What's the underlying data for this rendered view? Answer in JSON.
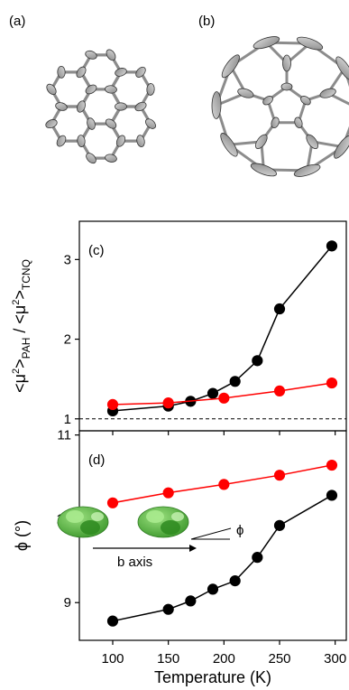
{
  "panels": {
    "a": {
      "label": "(a)"
    },
    "b": {
      "label": "(b)"
    }
  },
  "chart_data": [
    {
      "type": "line",
      "panel_label": "(c)",
      "xlabel": "",
      "ylabel": "<μ²>PAH / <μ²>TCNQ",
      "ylabel_parts": {
        "main1": "<μ",
        "sup1": "2",
        "main2": ">",
        "sub1": "PAH",
        "main3": " / <μ",
        "sup2": "2",
        "main4": ">",
        "sub2": "TCNQ"
      },
      "xlim": [
        70,
        310
      ],
      "ylim": [
        0.85,
        3.48
      ],
      "yticks": [
        1,
        2,
        3
      ],
      "reference_line": {
        "y": 1,
        "style": "dashed"
      },
      "series": [
        {
          "color": "#000000",
          "x": [
            100,
            150,
            170,
            190,
            210,
            230,
            250,
            297
          ],
          "y": [
            1.1,
            1.16,
            1.22,
            1.32,
            1.47,
            1.73,
            2.38,
            3.17
          ]
        },
        {
          "color": "#ff0000",
          "x": [
            100,
            150,
            200,
            250,
            297
          ],
          "y": [
            1.18,
            1.2,
            1.26,
            1.35,
            1.45
          ]
        }
      ]
    },
    {
      "type": "line",
      "panel_label": "(d)",
      "xlabel": "Temperature (K)",
      "ylabel": "ϕ (°)",
      "xlim": [
        70,
        310
      ],
      "ylim": [
        8.55,
        11.05
      ],
      "xticks": [
        100,
        150,
        200,
        250,
        300
      ],
      "yticks": [
        9,
        10,
        11
      ],
      "inset": {
        "axis_label": "b axis",
        "angle_label": "ϕ"
      },
      "series": [
        {
          "color": "#000000",
          "x": [
            100,
            150,
            170,
            190,
            210,
            230,
            250,
            297
          ],
          "y": [
            8.78,
            8.92,
            9.02,
            9.16,
            9.26,
            9.54,
            9.92,
            10.28
          ]
        },
        {
          "color": "#ff0000",
          "x": [
            100,
            150,
            200,
            250,
            297
          ],
          "y": [
            10.19,
            10.31,
            10.41,
            10.52,
            10.64
          ]
        }
      ]
    }
  ]
}
